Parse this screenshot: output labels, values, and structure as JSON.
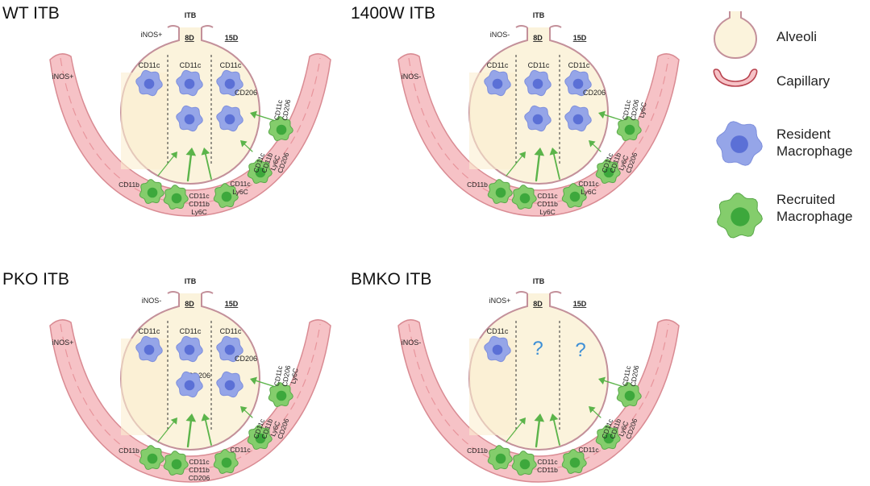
{
  "legend": [
    {
      "icon": "alveoli-icon",
      "label": "Alveoli"
    },
    {
      "icon": "capillary-icon",
      "label": "Capillary"
    },
    {
      "icon": "resident-macrophage-icon",
      "label": "Resident Macrophage"
    },
    {
      "icon": "recruited-macrophage-icon",
      "label": "Recruited Macrophage"
    }
  ],
  "colors": {
    "alveoli_fill": "#fbf3dc",
    "alveoli_stroke": "#c3909a",
    "vessel_fill": "#f6c2c6",
    "vessel_stroke": "#d98b93",
    "resident_fill": "#95a5e8",
    "resident_nucleus": "#5b70d6",
    "recruited_fill": "#84cd6c",
    "recruited_nucleus": "#3da83c",
    "arrow": "#5bb44a",
    "question": "#3d8fd6"
  },
  "panels": [
    {
      "title": "WT ITB",
      "itb": "ITB",
      "day8": "8D",
      "day15": "15D",
      "inos_alv": "iNOS+",
      "inos_cap": "iNOS+",
      "res_left": "CD11c",
      "res8_top": "CD11c",
      "res8_mid": "",
      "res15_top": "CD11c",
      "res15_mid": "CD206",
      "show8": true,
      "show15": true,
      "rec_a": "CD11b",
      "rec_b": [
        "CD11c",
        "CD11b",
        "Ly6C"
      ],
      "rec_c": [
        "CD11c",
        "Ly6C"
      ],
      "rec_d": [
        "CD11c",
        "CD11b",
        "Ly6C",
        "CD206"
      ],
      "rec_e": [
        "CD11c",
        "CD206"
      ]
    },
    {
      "title": "1400W ITB",
      "itb": "ITB",
      "day8": "8D",
      "day15": "15D",
      "inos_alv": "iNOS-",
      "inos_cap": "iNOS-",
      "res_left": "CD11c",
      "res8_top": "CD11c",
      "res8_mid": "",
      "res15_top": "CD11c",
      "res15_mid": "CD206",
      "show8": true,
      "show15": true,
      "rec_a": "CD11b",
      "rec_b": [
        "CD11c",
        "CD11b",
        "Ly6C"
      ],
      "rec_c": [
        "CD11c",
        "Ly6C"
      ],
      "rec_d": [
        "CD11c",
        "CD11b",
        "Ly6C",
        "CD206"
      ],
      "rec_e": [
        "CD11c",
        "CD206",
        "Ly6C"
      ]
    },
    {
      "title": "PKO ITB",
      "itb": "ITB",
      "day8": "8D",
      "day15": "15D",
      "inos_alv": "iNOS-",
      "inos_cap": "iNOS+",
      "res_left": "CD11c",
      "res8_top": "CD11c",
      "res8_mid": "CD206",
      "res15_top": "CD11c",
      "res15_mid": "CD206",
      "show8": true,
      "show15": true,
      "rec_a": "CD11b",
      "rec_b": [
        "CD11c",
        "CD11b",
        "CD206"
      ],
      "rec_c": [
        "CD11c"
      ],
      "rec_d": [
        "CD11c",
        "CD11b",
        "Ly6C",
        "CD206"
      ],
      "rec_e": [
        "CD11c",
        "CD206",
        "Ly6C"
      ]
    },
    {
      "title": "BMKO ITB",
      "itb": "ITB",
      "day8": "8D",
      "day15": "15D",
      "inos_alv": "iNOS+",
      "inos_cap": "iNOS-",
      "res_left": "CD11c",
      "res8_top": "",
      "res8_mid": "",
      "res15_top": "",
      "res15_mid": "",
      "show8": false,
      "show15": false,
      "q8": "?",
      "q15": "?",
      "rec_a": "CD11b",
      "rec_b": [
        "CD11c",
        "CD11b"
      ],
      "rec_c": [
        "CD11c"
      ],
      "rec_d": [
        "CD11c",
        "CD11b",
        "Ly6C",
        "CD206"
      ],
      "rec_e": [
        "CD11c",
        "CD206"
      ]
    }
  ]
}
